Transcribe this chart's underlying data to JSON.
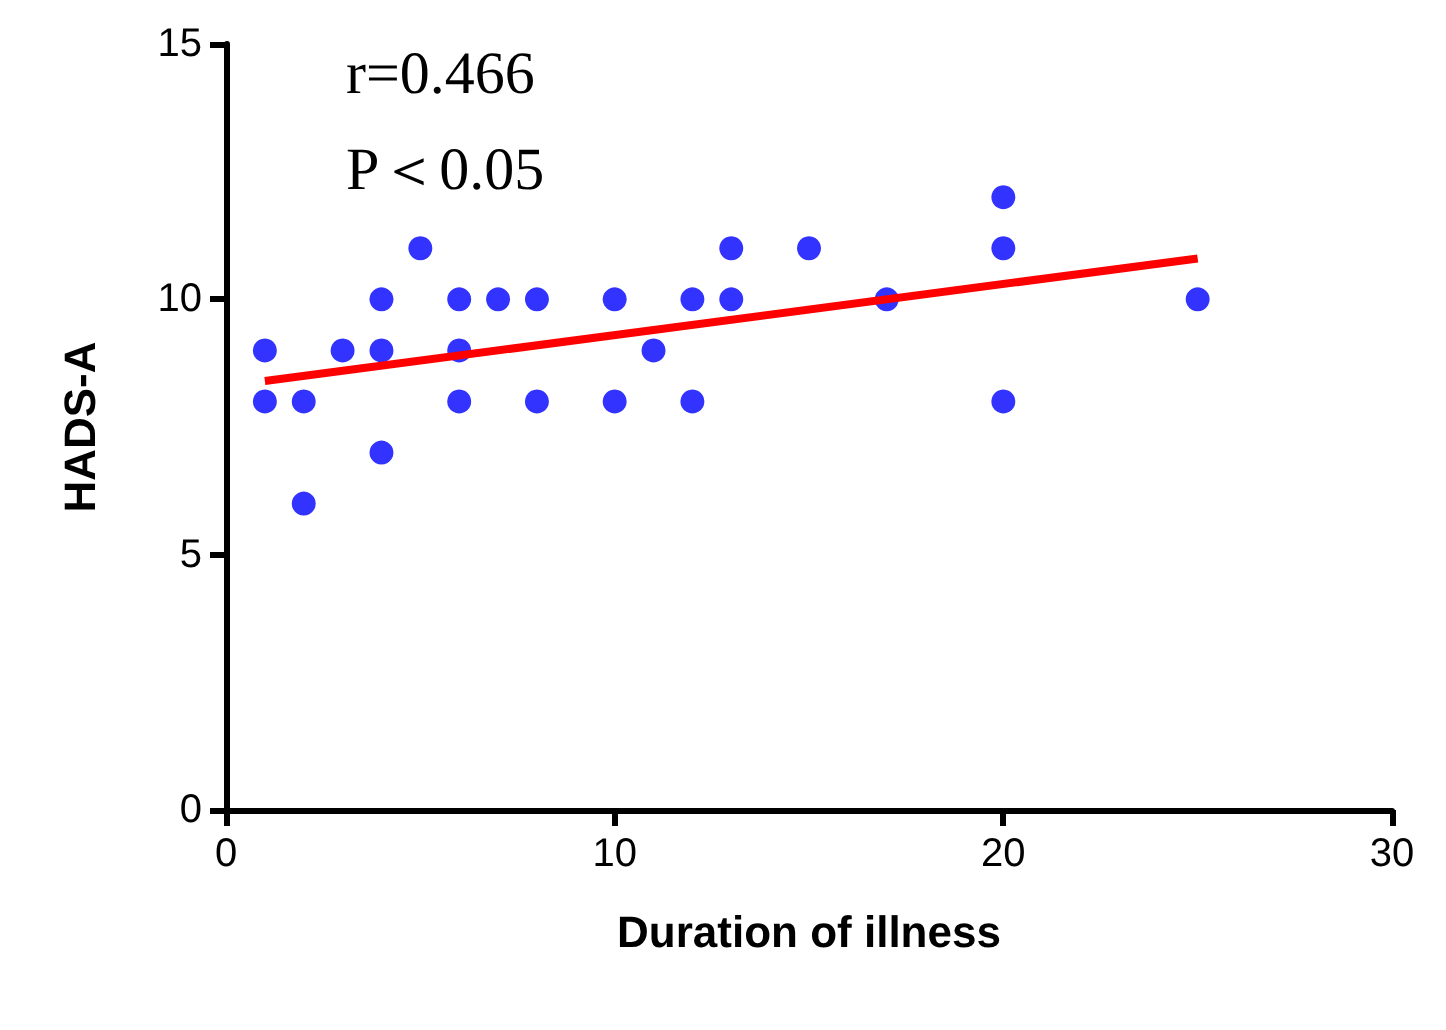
{
  "chart_data": {
    "type": "scatter",
    "xlabel": "Duration of illness",
    "ylabel": "HADS-A",
    "annotations": [
      "r=0.466",
      "P＜0.05"
    ],
    "xlim": [
      0,
      30
    ],
    "xticks": [
      0,
      10,
      20,
      30
    ],
    "ylim": [
      0,
      15
    ],
    "yticks": [
      0,
      5,
      10,
      15
    ],
    "grid": false,
    "marker": "circle",
    "series": [
      {
        "type": "scatter",
        "color": "#0000ff",
        "x": [
          1,
          1,
          2,
          2,
          3,
          4,
          4,
          4,
          5,
          6,
          6,
          6,
          7,
          8,
          8,
          10,
          10,
          11,
          12,
          12,
          13,
          13,
          15,
          17,
          20,
          20,
          20,
          25
        ],
        "values": [
          9,
          8,
          8,
          6,
          9,
          10,
          9,
          7,
          11,
          10,
          9,
          8,
          10,
          10,
          8,
          10,
          8,
          9,
          10,
          8,
          11,
          10,
          11,
          10,
          12,
          11,
          8,
          10
        ]
      },
      {
        "type": "line",
        "color": "#ff0000",
        "marker": "none",
        "line_style": "solid",
        "x": [
          1,
          25
        ],
        "values": [
          8.4,
          10.8
        ]
      }
    ]
  }
}
